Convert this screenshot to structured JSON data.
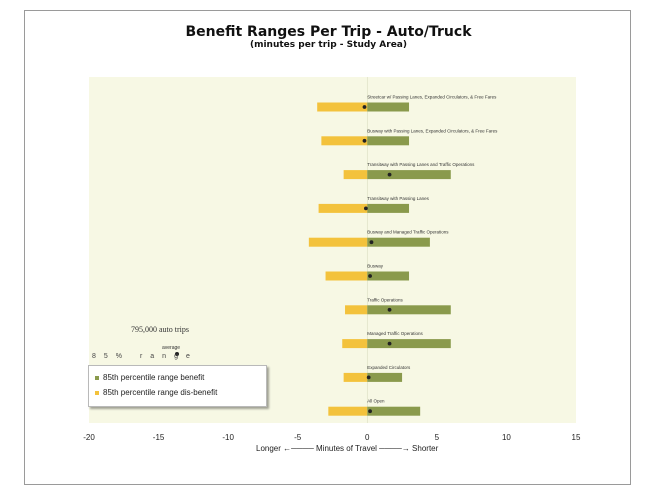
{
  "title": "Benefit Ranges Per Trip - Auto/Truck",
  "subtitle": "(minutes per trip - Study Area)",
  "note": {
    "trips": "795,000 auto trips",
    "average": "average",
    "range": "85% range"
  },
  "legend": {
    "benefit": "85th percentile range benefit",
    "disbenefit": "85th percentile range dis-benefit"
  },
  "xlabel": "Longer ←──── Minutes of Travel ────→ Shorter",
  "colors": {
    "benefit": "#8a9a4c",
    "disbenefit": "#f3c23c",
    "plot_bg": "#f7f8e4",
    "average": "#222222"
  },
  "chart_data": {
    "type": "bar",
    "orientation": "horizontal",
    "title": "Benefit Ranges Per Trip - Auto/Truck",
    "subtitle": "(minutes per trip - Study Area)",
    "xlabel": "Longer ← Minutes of Travel → Shorter",
    "xlim": [
      -20,
      15
    ],
    "xticks": [
      -20,
      -15,
      -10,
      -5,
      0,
      5,
      10,
      15
    ],
    "grid": false,
    "legend_position": "bottom-left",
    "categories": [
      "Streetcar w/ Passing Lanes, Expanded Circulators, & Free Fares",
      "Busway with Passing Lanes, Expanded Circulators, & Free Fares",
      "Transitway with Passing Lanes and Traffic Operations",
      "Transitway with Passing Lanes",
      "Busway and Managed Traffic Operations",
      "Busway",
      "Traffic Operations",
      "Managed Traffic Operations",
      "Expanded Circulators",
      "All Open"
    ],
    "series": [
      {
        "name": "85th percentile range benefit",
        "values": [
          3.0,
          3.0,
          6.0,
          3.0,
          4.5,
          3.0,
          6.0,
          6.0,
          2.5,
          3.8
        ]
      },
      {
        "name": "85th percentile range dis-benefit",
        "values": [
          -3.6,
          -3.3,
          -1.7,
          -3.5,
          -4.2,
          -3.0,
          -1.6,
          -1.8,
          -1.7,
          -2.8
        ]
      }
    ],
    "average": [
      -0.2,
      -0.2,
      1.6,
      -0.1,
      0.3,
      0.2,
      1.6,
      1.6,
      0.1,
      0.2
    ]
  }
}
